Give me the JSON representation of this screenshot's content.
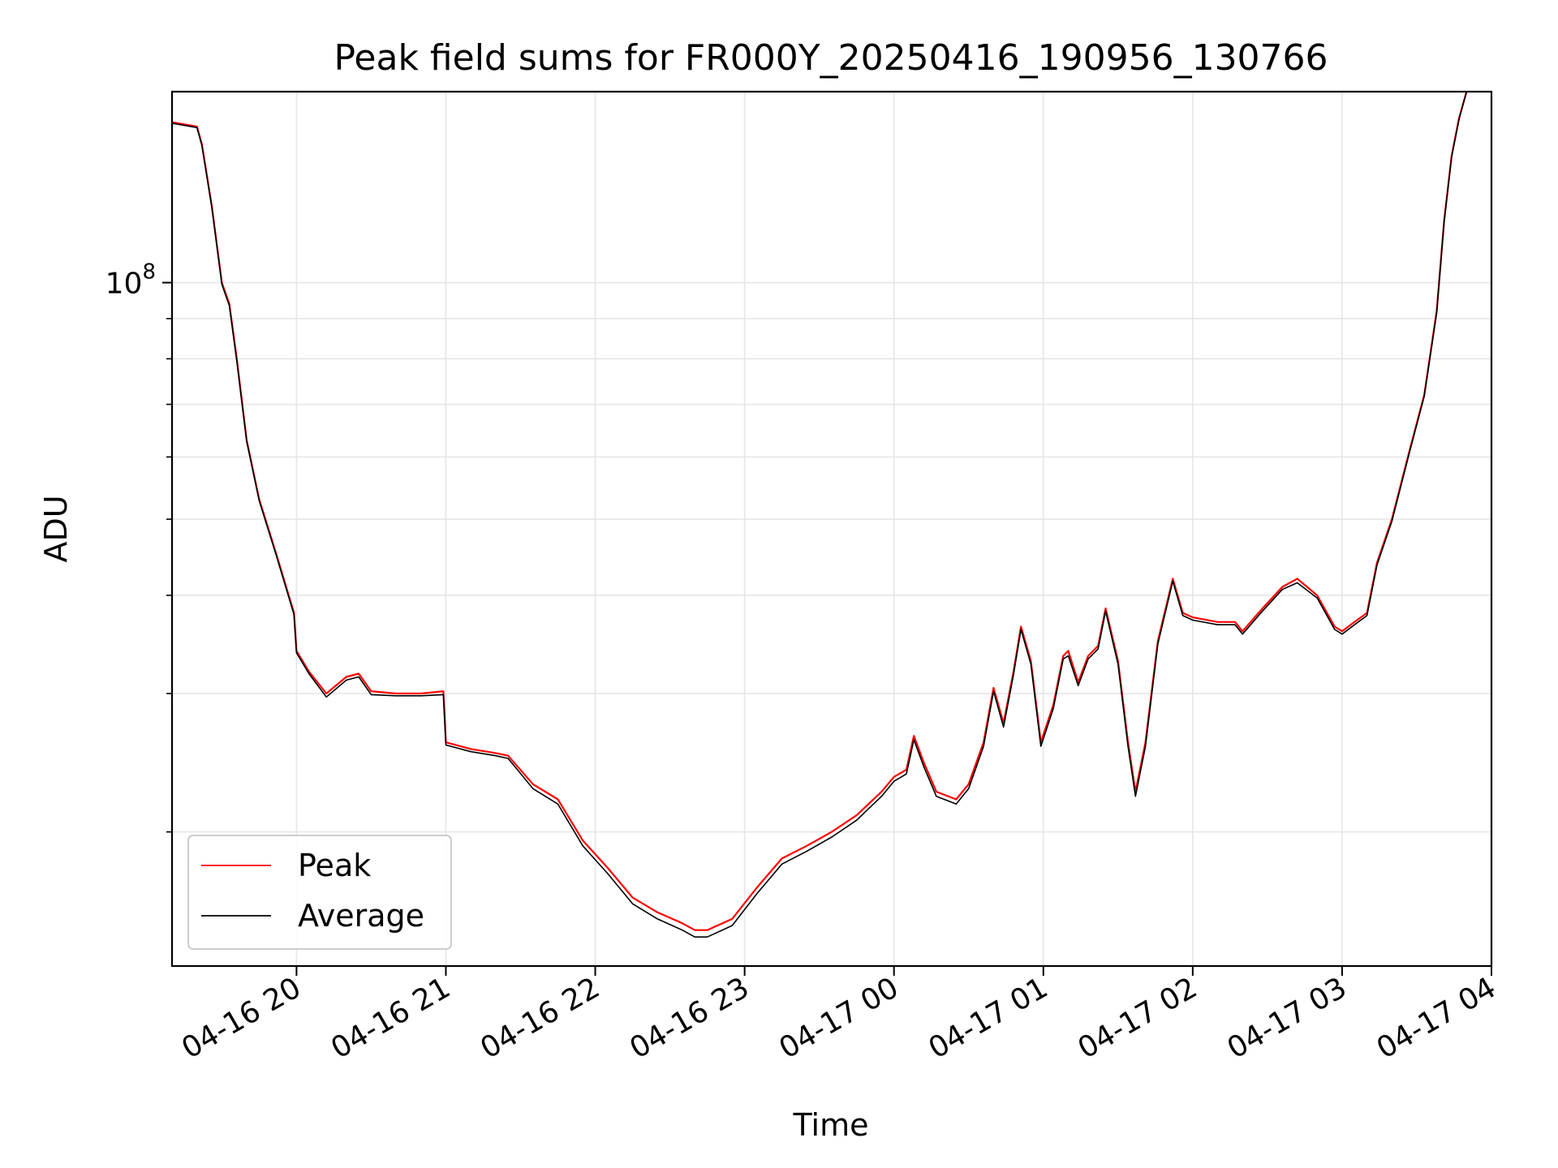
{
  "chart_data": {
    "type": "line",
    "title": "Peak field sums for FR000Y_20250416_190956_130766",
    "xlabel": "Time",
    "ylabel": "ADU",
    "y_scale": "log",
    "ylim": [
      13500000,
      175000000
    ],
    "xlim": [
      "2025-04-16 19:10",
      "2025-04-17 04:00"
    ],
    "grid": true,
    "legend": {
      "placement": "lower-left"
    },
    "x_ticks": [
      {
        "label": "04-16 20",
        "time": "2025-04-16 20:00"
      },
      {
        "label": "04-16 21",
        "time": "2025-04-16 21:00"
      },
      {
        "label": "04-16 22",
        "time": "2025-04-16 22:00"
      },
      {
        "label": "04-16 23",
        "time": "2025-04-16 23:00"
      },
      {
        "label": "04-17 00",
        "time": "2025-04-17 00:00"
      },
      {
        "label": "04-17 01",
        "time": "2025-04-17 01:00"
      },
      {
        "label": "04-17 02",
        "time": "2025-04-17 02:00"
      },
      {
        "label": "04-17 03",
        "time": "2025-04-17 03:00"
      },
      {
        "label": "04-17 04",
        "time": "2025-04-17 04:00"
      }
    ],
    "y_major_ticks": [
      {
        "label": "10",
        "exponent": "8",
        "value": 100000000
      }
    ],
    "y_minor_ticks": [
      20000000,
      30000000,
      40000000,
      50000000,
      60000000,
      70000000,
      80000000,
      90000000
    ],
    "series": [
      {
        "name": "Peak",
        "color": "#ff0000",
        "points": [
          [
            "2025-04-16 19:10",
            160000000
          ],
          [
            "2025-04-16 19:20",
            158000000
          ],
          [
            "2025-04-16 19:22",
            150000000
          ],
          [
            "2025-04-16 19:26",
            125000000
          ],
          [
            "2025-04-16 19:30",
            100000000
          ],
          [
            "2025-04-16 19:33",
            94000000
          ],
          [
            "2025-04-16 19:36",
            80000000
          ],
          [
            "2025-04-16 19:40",
            63000000
          ],
          [
            "2025-04-16 19:45",
            53000000
          ],
          [
            "2025-04-16 19:52",
            45000000
          ],
          [
            "2025-04-16 19:59",
            38000000
          ],
          [
            "2025-04-16 20:00",
            34000000
          ],
          [
            "2025-04-16 20:05",
            32000000
          ],
          [
            "2025-04-16 20:12",
            30000000
          ],
          [
            "2025-04-16 20:20",
            31500000
          ],
          [
            "2025-04-16 20:25",
            31800000
          ],
          [
            "2025-04-16 20:30",
            30200000
          ],
          [
            "2025-04-16 20:40",
            30000000
          ],
          [
            "2025-04-16 20:50",
            30000000
          ],
          [
            "2025-04-16 20:59",
            30200000
          ],
          [
            "2025-04-16 21:00",
            26000000
          ],
          [
            "2025-04-16 21:10",
            25500000
          ],
          [
            "2025-04-16 21:20",
            25200000
          ],
          [
            "2025-04-16 21:25",
            25000000
          ],
          [
            "2025-04-16 21:35",
            23000000
          ],
          [
            "2025-04-16 21:45",
            22000000
          ],
          [
            "2025-04-16 21:55",
            19500000
          ],
          [
            "2025-04-16 22:05",
            18000000
          ],
          [
            "2025-04-16 22:15",
            16500000
          ],
          [
            "2025-04-16 22:25",
            15800000
          ],
          [
            "2025-04-16 22:35",
            15300000
          ],
          [
            "2025-04-16 22:40",
            15000000
          ],
          [
            "2025-04-16 22:45",
            15000000
          ],
          [
            "2025-04-16 22:55",
            15500000
          ],
          [
            "2025-04-16 23:05",
            17000000
          ],
          [
            "2025-04-16 23:15",
            18500000
          ],
          [
            "2025-04-16 23:25",
            19200000
          ],
          [
            "2025-04-16 23:35",
            20000000
          ],
          [
            "2025-04-16 23:45",
            21000000
          ],
          [
            "2025-04-16 23:55",
            22500000
          ],
          [
            "2025-04-17 00:00",
            23500000
          ],
          [
            "2025-04-17 00:05",
            24000000
          ],
          [
            "2025-04-17 00:08",
            26500000
          ],
          [
            "2025-04-17 00:12",
            24500000
          ],
          [
            "2025-04-17 00:17",
            22500000
          ],
          [
            "2025-04-17 00:25",
            22000000
          ],
          [
            "2025-04-17 00:30",
            23000000
          ],
          [
            "2025-04-17 00:36",
            26000000
          ],
          [
            "2025-04-17 00:40",
            30500000
          ],
          [
            "2025-04-17 00:44",
            27500000
          ],
          [
            "2025-04-17 00:48",
            32000000
          ],
          [
            "2025-04-17 00:51",
            36500000
          ],
          [
            "2025-04-17 00:55",
            33000000
          ],
          [
            "2025-04-17 00:59",
            26000000
          ],
          [
            "2025-04-17 01:04",
            29000000
          ],
          [
            "2025-04-17 01:08",
            33500000
          ],
          [
            "2025-04-17 01:10",
            34000000
          ],
          [
            "2025-04-17 01:14",
            31000000
          ],
          [
            "2025-04-17 01:18",
            33500000
          ],
          [
            "2025-04-17 01:22",
            34500000
          ],
          [
            "2025-04-17 01:25",
            38500000
          ],
          [
            "2025-04-17 01:30",
            33000000
          ],
          [
            "2025-04-17 01:34",
            26000000
          ],
          [
            "2025-04-17 01:37",
            22500000
          ],
          [
            "2025-04-17 01:41",
            26000000
          ],
          [
            "2025-04-17 01:46",
            35000000
          ],
          [
            "2025-04-17 01:52",
            42000000
          ],
          [
            "2025-04-17 01:56",
            38000000
          ],
          [
            "2025-04-17 02:00",
            37500000
          ],
          [
            "2025-04-17 02:10",
            37000000
          ],
          [
            "2025-04-17 02:17",
            37000000
          ],
          [
            "2025-04-17 02:20",
            36000000
          ],
          [
            "2025-04-17 02:28",
            38500000
          ],
          [
            "2025-04-17 02:36",
            41000000
          ],
          [
            "2025-04-17 02:42",
            42000000
          ],
          [
            "2025-04-17 02:50",
            40000000
          ],
          [
            "2025-04-17 02:57",
            36500000
          ],
          [
            "2025-04-17 03:00",
            36000000
          ],
          [
            "2025-04-17 03:05",
            37000000
          ],
          [
            "2025-04-17 03:10",
            38000000
          ],
          [
            "2025-04-17 03:14",
            44000000
          ],
          [
            "2025-04-17 03:20",
            50000000
          ],
          [
            "2025-04-17 03:27",
            61000000
          ],
          [
            "2025-04-17 03:33",
            72000000
          ],
          [
            "2025-04-17 03:38",
            92000000
          ],
          [
            "2025-04-17 03:41",
            120000000
          ],
          [
            "2025-04-17 03:44",
            145000000
          ],
          [
            "2025-04-17 03:47",
            162000000
          ],
          [
            "2025-04-17 03:50",
            175000000
          ]
        ]
      },
      {
        "name": "Average",
        "color": "#000000",
        "points": [
          [
            "2025-04-16 19:10",
            159500000
          ],
          [
            "2025-04-16 19:20",
            157500000
          ],
          [
            "2025-04-16 19:22",
            149500000
          ],
          [
            "2025-04-16 19:26",
            124500000
          ],
          [
            "2025-04-16 19:30",
            99500000
          ],
          [
            "2025-04-16 19:33",
            93500000
          ],
          [
            "2025-04-16 19:36",
            79500000
          ],
          [
            "2025-04-16 19:40",
            62800000
          ],
          [
            "2025-04-16 19:45",
            52800000
          ],
          [
            "2025-04-16 19:52",
            44800000
          ],
          [
            "2025-04-16 19:59",
            37800000
          ],
          [
            "2025-04-16 20:00",
            33800000
          ],
          [
            "2025-04-16 20:05",
            31800000
          ],
          [
            "2025-04-16 20:12",
            29700000
          ],
          [
            "2025-04-16 20:20",
            31200000
          ],
          [
            "2025-04-16 20:25",
            31500000
          ],
          [
            "2025-04-16 20:30",
            29900000
          ],
          [
            "2025-04-16 20:40",
            29800000
          ],
          [
            "2025-04-16 20:50",
            29800000
          ],
          [
            "2025-04-16 20:59",
            29900000
          ],
          [
            "2025-04-16 21:00",
            25800000
          ],
          [
            "2025-04-16 21:10",
            25300000
          ],
          [
            "2025-04-16 21:20",
            25000000
          ],
          [
            "2025-04-16 21:25",
            24800000
          ],
          [
            "2025-04-16 21:35",
            22700000
          ],
          [
            "2025-04-16 21:45",
            21700000
          ],
          [
            "2025-04-16 21:55",
            19200000
          ],
          [
            "2025-04-16 22:05",
            17700000
          ],
          [
            "2025-04-16 22:15",
            16200000
          ],
          [
            "2025-04-16 22:25",
            15500000
          ],
          [
            "2025-04-16 22:35",
            15000000
          ],
          [
            "2025-04-16 22:40",
            14700000
          ],
          [
            "2025-04-16 22:45",
            14700000
          ],
          [
            "2025-04-16 22:55",
            15200000
          ],
          [
            "2025-04-16 23:05",
            16700000
          ],
          [
            "2025-04-16 23:15",
            18200000
          ],
          [
            "2025-04-16 23:25",
            18900000
          ],
          [
            "2025-04-16 23:35",
            19700000
          ],
          [
            "2025-04-16 23:45",
            20700000
          ],
          [
            "2025-04-16 23:55",
            22200000
          ],
          [
            "2025-04-17 00:00",
            23200000
          ],
          [
            "2025-04-17 00:05",
            23700000
          ],
          [
            "2025-04-17 00:08",
            26200000
          ],
          [
            "2025-04-17 00:12",
            24200000
          ],
          [
            "2025-04-17 00:17",
            22200000
          ],
          [
            "2025-04-17 00:25",
            21700000
          ],
          [
            "2025-04-17 00:30",
            22700000
          ],
          [
            "2025-04-17 00:36",
            25700000
          ],
          [
            "2025-04-17 00:40",
            30200000
          ],
          [
            "2025-04-17 00:44",
            27200000
          ],
          [
            "2025-04-17 00:48",
            31700000
          ],
          [
            "2025-04-17 00:51",
            36200000
          ],
          [
            "2025-04-17 00:55",
            32700000
          ],
          [
            "2025-04-17 00:59",
            25700000
          ],
          [
            "2025-04-17 01:04",
            28700000
          ],
          [
            "2025-04-17 01:08",
            33200000
          ],
          [
            "2025-04-17 01:10",
            33500000
          ],
          [
            "2025-04-17 01:14",
            30700000
          ],
          [
            "2025-04-17 01:18",
            33200000
          ],
          [
            "2025-04-17 01:22",
            34200000
          ],
          [
            "2025-04-17 01:25",
            38200000
          ],
          [
            "2025-04-17 01:30",
            32700000
          ],
          [
            "2025-04-17 01:34",
            25700000
          ],
          [
            "2025-04-17 01:37",
            22200000
          ],
          [
            "2025-04-17 01:41",
            25700000
          ],
          [
            "2025-04-17 01:46",
            34700000
          ],
          [
            "2025-04-17 01:52",
            41700000
          ],
          [
            "2025-04-17 01:56",
            37700000
          ],
          [
            "2025-04-17 02:00",
            37200000
          ],
          [
            "2025-04-17 02:10",
            36700000
          ],
          [
            "2025-04-17 02:17",
            36700000
          ],
          [
            "2025-04-17 02:20",
            35700000
          ],
          [
            "2025-04-17 02:28",
            38200000
          ],
          [
            "2025-04-17 02:36",
            40700000
          ],
          [
            "2025-04-17 02:42",
            41500000
          ],
          [
            "2025-04-17 02:50",
            39700000
          ],
          [
            "2025-04-17 02:57",
            36200000
          ],
          [
            "2025-04-17 03:00",
            35700000
          ],
          [
            "2025-04-17 03:05",
            36700000
          ],
          [
            "2025-04-17 03:10",
            37700000
          ],
          [
            "2025-04-17 03:14",
            43700000
          ],
          [
            "2025-04-17 03:20",
            49700000
          ],
          [
            "2025-04-17 03:27",
            60700000
          ],
          [
            "2025-04-17 03:33",
            71700000
          ],
          [
            "2025-04-17 03:38",
            91500000
          ],
          [
            "2025-04-17 03:41",
            119500000
          ],
          [
            "2025-04-17 03:44",
            144500000
          ],
          [
            "2025-04-17 03:47",
            161500000
          ],
          [
            "2025-04-17 03:50",
            175000000
          ]
        ]
      }
    ]
  }
}
